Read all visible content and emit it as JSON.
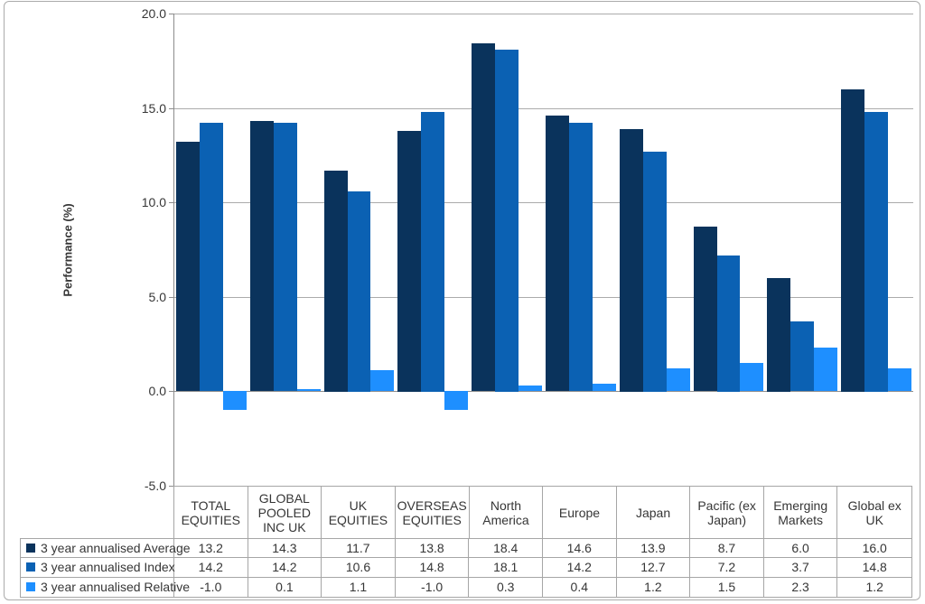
{
  "page": {
    "background": "#FFFFFF"
  },
  "chart_data": {
    "type": "bar",
    "title": "",
    "xlabel": "",
    "ylabel": "Performance (%)",
    "ylim": [
      -5,
      20
    ],
    "ytick_interval": 5,
    "yticks": [
      {
        "value": 20,
        "label": "20.0"
      },
      {
        "value": 15,
        "label": "15.0"
      },
      {
        "value": 10,
        "label": "10.0"
      },
      {
        "value": 5,
        "label": "5.0"
      },
      {
        "value": 0,
        "label": "0.0"
      },
      {
        "value": -5,
        "label": "-5.0"
      }
    ],
    "grid": "horizontal",
    "legend_position": "data-table-left-column",
    "value_format": "one_decimal",
    "categories": [
      "TOTAL EQUITIES",
      "GLOBAL POOLED INC UK",
      "UK EQUITIES",
      "OVERSEAS EQUITIES",
      "North America",
      "Europe",
      "Japan",
      "Pacific (ex Japan)",
      "Emerging Markets",
      "Global ex UK"
    ],
    "series": [
      {
        "name": "3 year annualised Average",
        "color": "#0A335C",
        "values": [
          13.2,
          14.3,
          11.7,
          13.8,
          18.4,
          14.6,
          13.9,
          8.7,
          6.0,
          16.0
        ]
      },
      {
        "name": "3 year annualised Index",
        "color": "#0B61B3",
        "values": [
          14.2,
          14.2,
          10.6,
          14.8,
          18.1,
          14.2,
          12.7,
          7.2,
          3.7,
          14.8
        ]
      },
      {
        "name": "3 year annualised Relative",
        "color": "#1E8FFF",
        "values": [
          -1.0,
          0.1,
          1.1,
          -1.0,
          0.3,
          0.4,
          1.2,
          1.5,
          2.3,
          1.2
        ]
      }
    ]
  },
  "style_colors": {
    "gridline": "#ABABAB",
    "axis_line": "#8C8C8C",
    "table_border": "#A6A6A6",
    "text": "#363636",
    "frame_border": "#ABABAB"
  }
}
